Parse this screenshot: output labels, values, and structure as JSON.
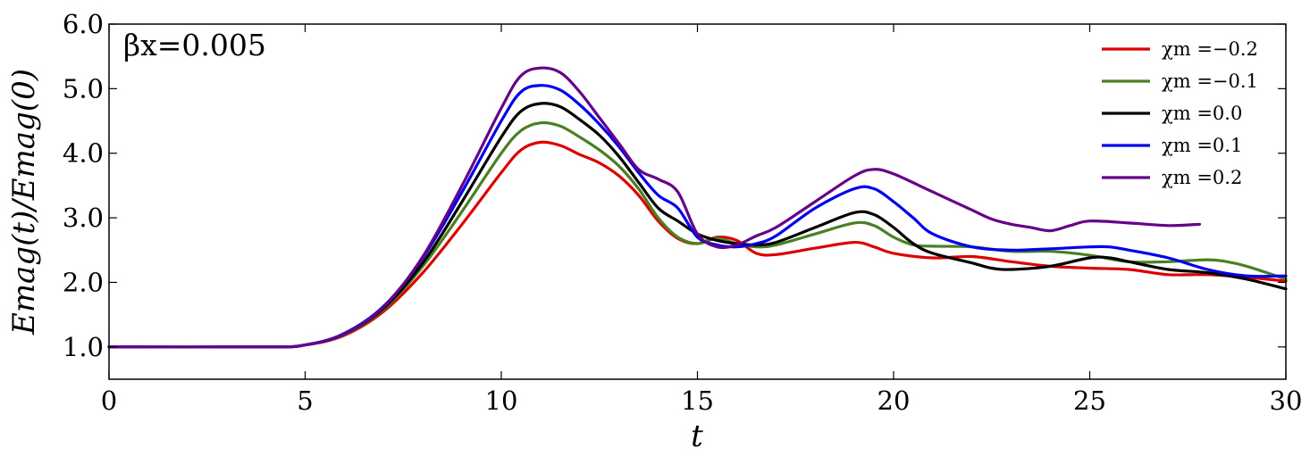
{
  "chart_data": {
    "type": "line",
    "annotation": "βx=0.005",
    "xlabel": "t",
    "ylabel": "Emag(t)/Emag(0)",
    "xlim": [
      0,
      30
    ],
    "ylim": [
      0.5,
      6.0
    ],
    "xticks": [
      "0",
      "5",
      "10",
      "15",
      "20",
      "25",
      "30"
    ],
    "yticks": [
      "1.0",
      "2.0",
      "3.0",
      "4.0",
      "5.0",
      "6.0"
    ],
    "legend_position": "top-right",
    "grid": false,
    "series": [
      {
        "name": "χm =−0.2",
        "color": "#dd0000",
        "points": [
          [
            0,
            1.0
          ],
          [
            4,
            1.0
          ],
          [
            5,
            1.03
          ],
          [
            6,
            1.18
          ],
          [
            7,
            1.55
          ],
          [
            8,
            2.15
          ],
          [
            9,
            2.9
          ],
          [
            10,
            3.7
          ],
          [
            10.5,
            4.05
          ],
          [
            11,
            4.17
          ],
          [
            11.5,
            4.12
          ],
          [
            12,
            3.98
          ],
          [
            12.5,
            3.85
          ],
          [
            13,
            3.65
          ],
          [
            13.5,
            3.35
          ],
          [
            14,
            2.95
          ],
          [
            14.5,
            2.68
          ],
          [
            15,
            2.6
          ],
          [
            15.5,
            2.7
          ],
          [
            16,
            2.65
          ],
          [
            16.5,
            2.45
          ],
          [
            17,
            2.43
          ],
          [
            18,
            2.53
          ],
          [
            19,
            2.62
          ],
          [
            19.5,
            2.55
          ],
          [
            20,
            2.45
          ],
          [
            21,
            2.38
          ],
          [
            22,
            2.4
          ],
          [
            23,
            2.32
          ],
          [
            24,
            2.25
          ],
          [
            25,
            2.22
          ],
          [
            26,
            2.2
          ],
          [
            27,
            2.12
          ],
          [
            28,
            2.12
          ],
          [
            29,
            2.08
          ],
          [
            30,
            2.02
          ]
        ]
      },
      {
        "name": "χm =−0.1",
        "color": "#4a7f24",
        "points": [
          [
            0,
            1.0
          ],
          [
            4,
            1.0
          ],
          [
            5,
            1.03
          ],
          [
            6,
            1.19
          ],
          [
            7,
            1.58
          ],
          [
            8,
            2.25
          ],
          [
            9,
            3.1
          ],
          [
            10,
            4.0
          ],
          [
            10.5,
            4.35
          ],
          [
            11,
            4.47
          ],
          [
            11.5,
            4.42
          ],
          [
            12,
            4.25
          ],
          [
            12.5,
            4.05
          ],
          [
            13,
            3.8
          ],
          [
            13.5,
            3.45
          ],
          [
            14,
            3.0
          ],
          [
            14.5,
            2.7
          ],
          [
            15,
            2.6
          ],
          [
            15.5,
            2.68
          ],
          [
            16,
            2.6
          ],
          [
            16.5,
            2.55
          ],
          [
            17,
            2.58
          ],
          [
            18,
            2.75
          ],
          [
            19,
            2.92
          ],
          [
            19.5,
            2.88
          ],
          [
            20,
            2.7
          ],
          [
            20.5,
            2.58
          ],
          [
            21,
            2.56
          ],
          [
            22,
            2.55
          ],
          [
            23,
            2.48
          ],
          [
            24,
            2.48
          ],
          [
            25,
            2.42
          ],
          [
            26,
            2.32
          ],
          [
            27,
            2.32
          ],
          [
            28,
            2.35
          ],
          [
            28.5,
            2.32
          ],
          [
            29,
            2.25
          ],
          [
            30,
            2.05
          ]
        ]
      },
      {
        "name": "χm =0.0",
        "color": "#000000",
        "points": [
          [
            0,
            1.0
          ],
          [
            4,
            1.0
          ],
          [
            5,
            1.03
          ],
          [
            6,
            1.2
          ],
          [
            7,
            1.6
          ],
          [
            8,
            2.3
          ],
          [
            9,
            3.25
          ],
          [
            10,
            4.25
          ],
          [
            10.5,
            4.65
          ],
          [
            11,
            4.77
          ],
          [
            11.5,
            4.72
          ],
          [
            12,
            4.52
          ],
          [
            12.5,
            4.28
          ],
          [
            13,
            3.95
          ],
          [
            13.5,
            3.55
          ],
          [
            14,
            3.15
          ],
          [
            14.5,
            2.95
          ],
          [
            15,
            2.75
          ],
          [
            15.5,
            2.65
          ],
          [
            16,
            2.6
          ],
          [
            16.5,
            2.58
          ],
          [
            17,
            2.62
          ],
          [
            18,
            2.85
          ],
          [
            19,
            3.08
          ],
          [
            19.5,
            3.05
          ],
          [
            20,
            2.85
          ],
          [
            20.5,
            2.6
          ],
          [
            21,
            2.45
          ],
          [
            22,
            2.3
          ],
          [
            22.5,
            2.22
          ],
          [
            23,
            2.2
          ],
          [
            24,
            2.25
          ],
          [
            25,
            2.38
          ],
          [
            25.5,
            2.38
          ],
          [
            26,
            2.32
          ],
          [
            27,
            2.2
          ],
          [
            28,
            2.15
          ],
          [
            29,
            2.05
          ],
          [
            30,
            1.9
          ]
        ]
      },
      {
        "name": "χm =0.1",
        "color": "#0000ee",
        "points": [
          [
            0,
            1.0
          ],
          [
            4,
            1.0
          ],
          [
            5,
            1.03
          ],
          [
            6,
            1.21
          ],
          [
            7,
            1.63
          ],
          [
            8,
            2.38
          ],
          [
            9,
            3.4
          ],
          [
            10,
            4.5
          ],
          [
            10.5,
            4.95
          ],
          [
            11,
            5.05
          ],
          [
            11.5,
            4.98
          ],
          [
            12,
            4.75
          ],
          [
            12.5,
            4.45
          ],
          [
            13,
            4.1
          ],
          [
            13.5,
            3.7
          ],
          [
            14,
            3.35
          ],
          [
            14.5,
            3.15
          ],
          [
            15,
            2.7
          ],
          [
            15.5,
            2.58
          ],
          [
            16,
            2.55
          ],
          [
            16.5,
            2.6
          ],
          [
            17,
            2.72
          ],
          [
            18,
            3.15
          ],
          [
            19,
            3.45
          ],
          [
            19.5,
            3.45
          ],
          [
            20,
            3.25
          ],
          [
            20.5,
            3.0
          ],
          [
            21,
            2.75
          ],
          [
            22,
            2.55
          ],
          [
            23,
            2.5
          ],
          [
            24,
            2.52
          ],
          [
            25,
            2.55
          ],
          [
            25.5,
            2.55
          ],
          [
            26,
            2.5
          ],
          [
            27,
            2.38
          ],
          [
            28,
            2.2
          ],
          [
            29,
            2.1
          ],
          [
            30,
            2.1
          ]
        ]
      },
      {
        "name": "χm =0.2",
        "color": "#660088",
        "points": [
          [
            0,
            1.0
          ],
          [
            4,
            1.0
          ],
          [
            5,
            1.03
          ],
          [
            6,
            1.2
          ],
          [
            7,
            1.62
          ],
          [
            8,
            2.4
          ],
          [
            9,
            3.5
          ],
          [
            10,
            4.7
          ],
          [
            10.5,
            5.2
          ],
          [
            11,
            5.32
          ],
          [
            11.5,
            5.25
          ],
          [
            12,
            4.95
          ],
          [
            12.5,
            4.55
          ],
          [
            13,
            4.15
          ],
          [
            13.5,
            3.75
          ],
          [
            14,
            3.6
          ],
          [
            14.5,
            3.4
          ],
          [
            15,
            2.75
          ],
          [
            15.5,
            2.55
          ],
          [
            16,
            2.58
          ],
          [
            16.5,
            2.72
          ],
          [
            17,
            2.85
          ],
          [
            18,
            3.25
          ],
          [
            19,
            3.65
          ],
          [
            19.5,
            3.75
          ],
          [
            20,
            3.68
          ],
          [
            21,
            3.4
          ],
          [
            22,
            3.12
          ],
          [
            22.5,
            2.98
          ],
          [
            23,
            2.9
          ],
          [
            23.5,
            2.85
          ],
          [
            24,
            2.8
          ],
          [
            24.5,
            2.88
          ],
          [
            25,
            2.95
          ],
          [
            26,
            2.92
          ],
          [
            27,
            2.88
          ],
          [
            27.8,
            2.9
          ]
        ]
      }
    ]
  }
}
